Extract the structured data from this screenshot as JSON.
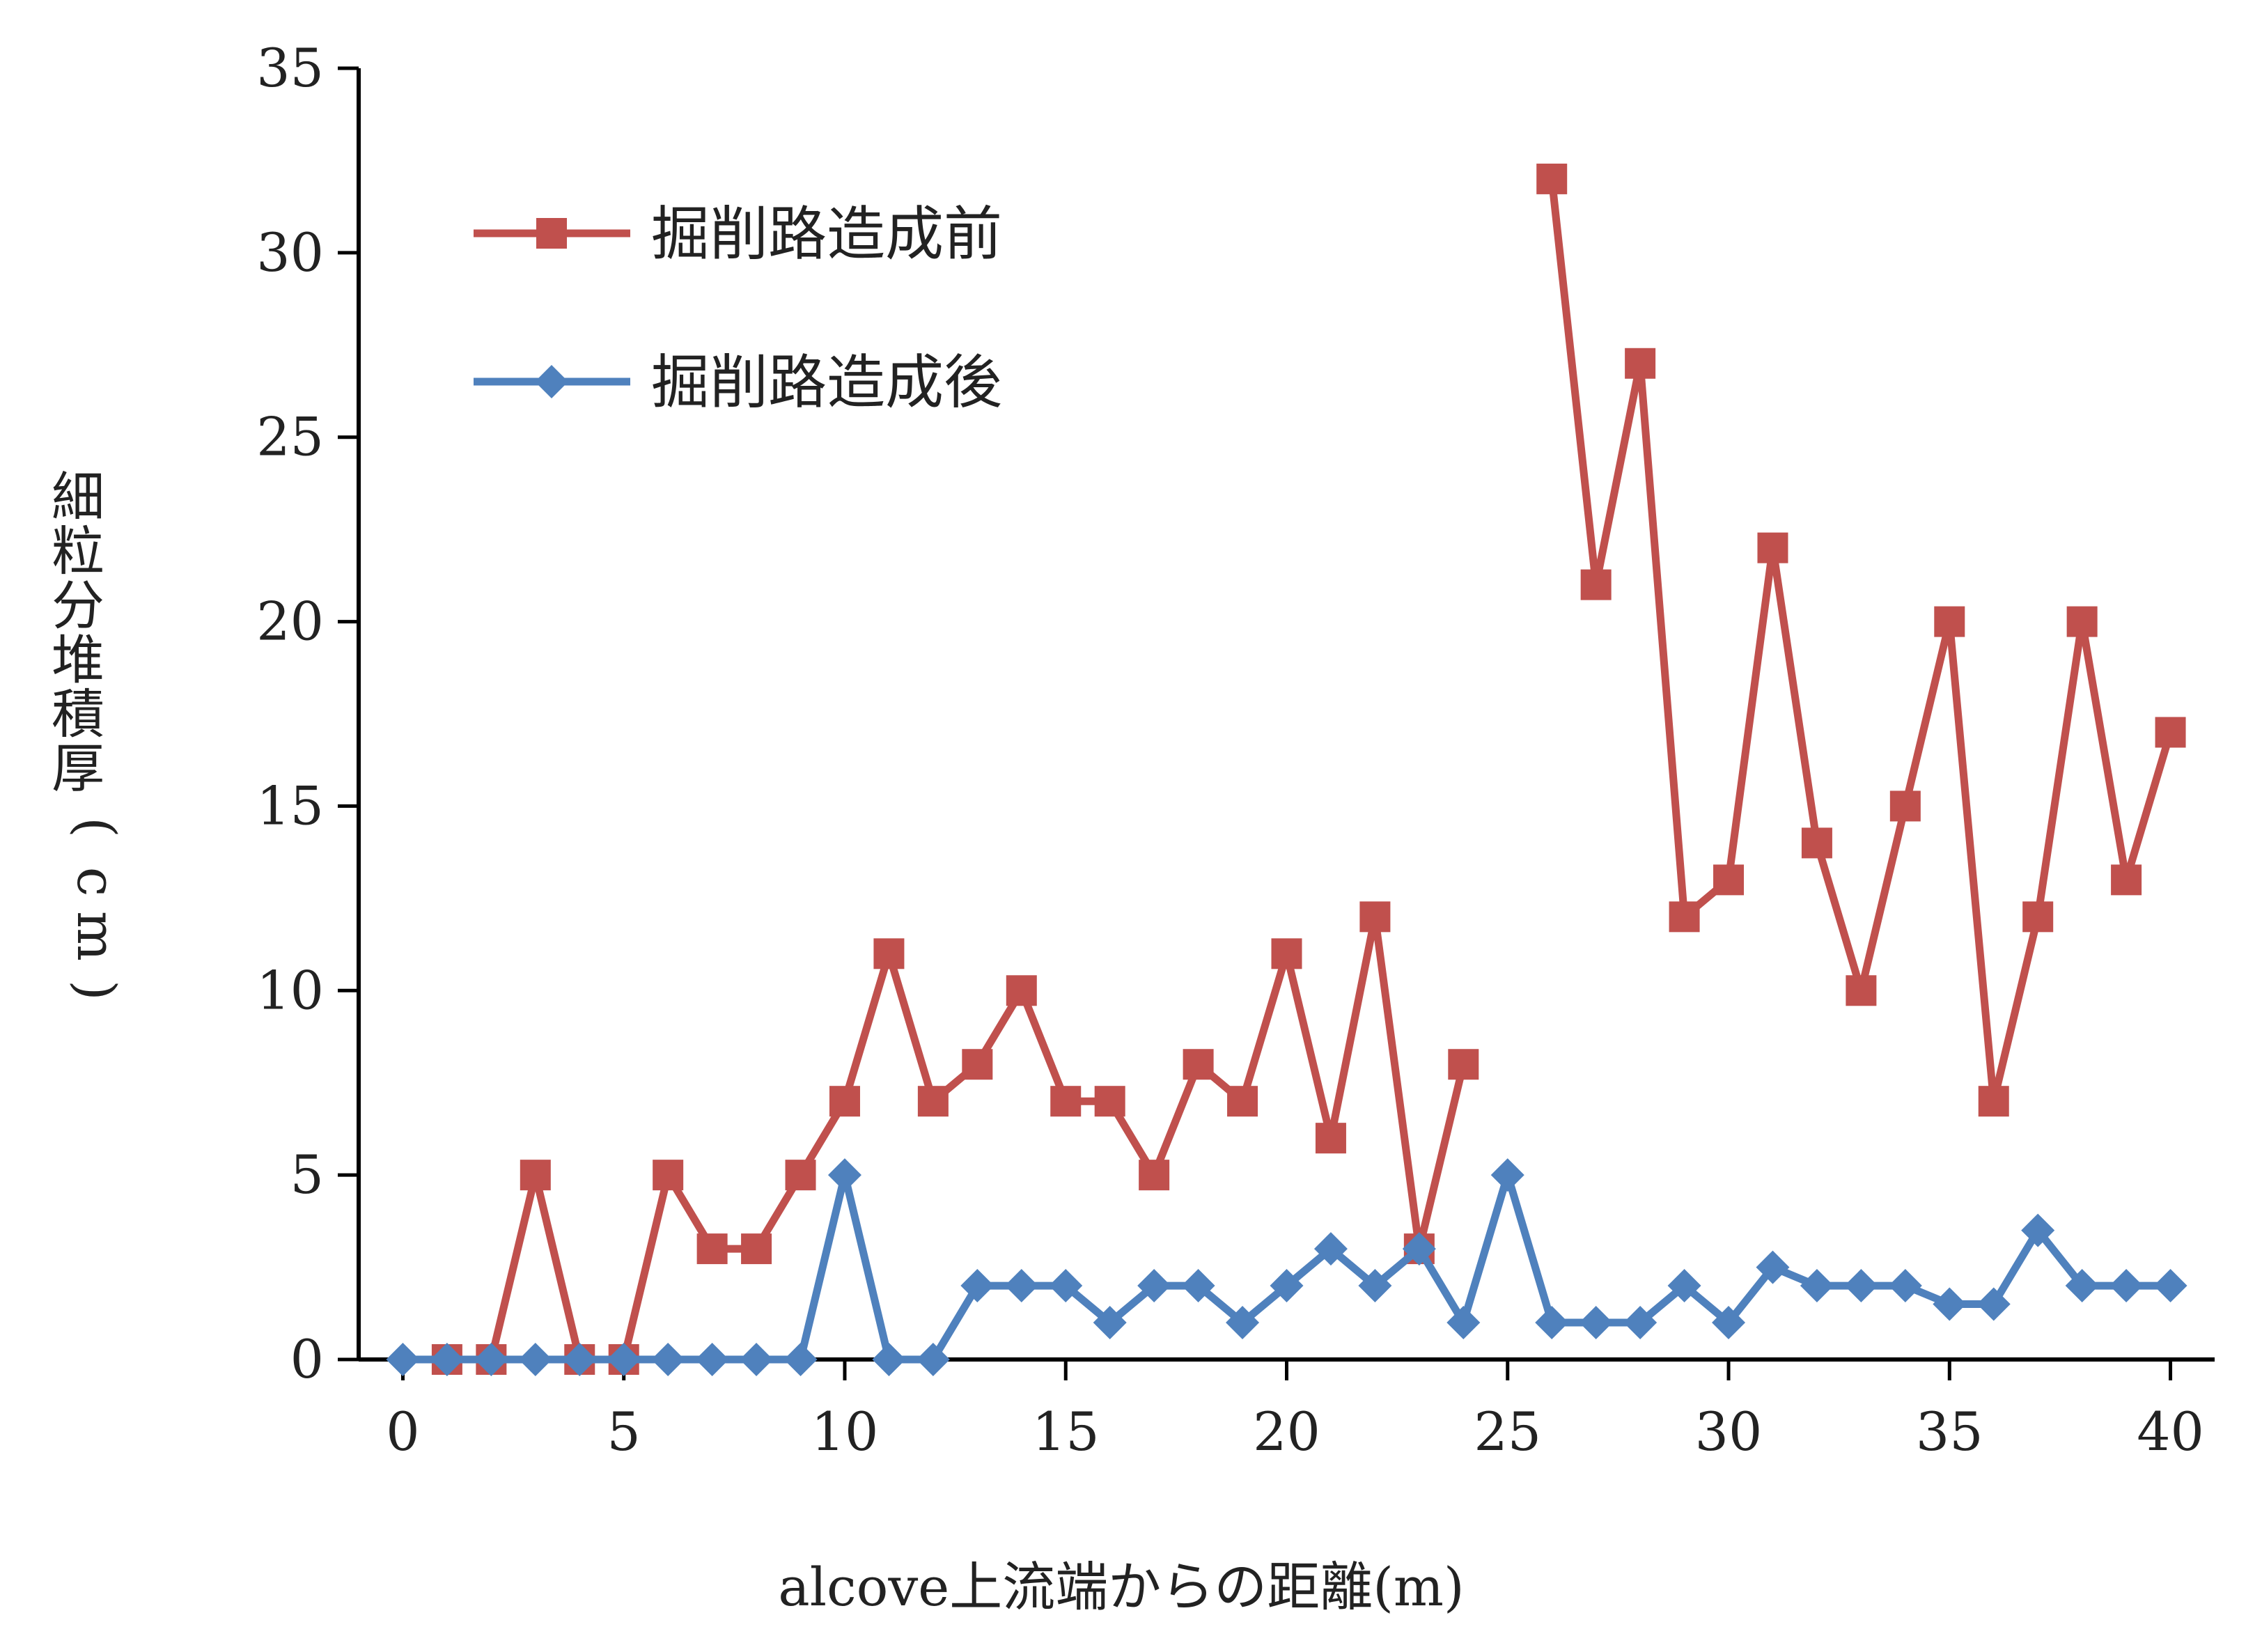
{
  "chart_data": {
    "type": "line",
    "title": "",
    "xlabel": "alcove上流端からの距離(m)",
    "ylabel": "細粒分堆積厚(cm)",
    "xlim": [
      -1,
      41
    ],
    "ylim": [
      0,
      35
    ],
    "x_ticks": [
      "0",
      "5",
      "10",
      "15",
      "20",
      "25",
      "30",
      "35",
      "40"
    ],
    "y_ticks": [
      "0",
      "5",
      "10",
      "15",
      "20",
      "25",
      "30",
      "35"
    ],
    "grid": false,
    "legend_position": "top-left",
    "series": [
      {
        "name": "掘削路造成前",
        "color": "#c0504d",
        "marker": "square",
        "x": [
          1,
          2,
          3,
          4,
          5,
          6,
          7,
          8,
          9,
          10,
          11,
          12,
          13,
          14,
          15,
          16,
          17,
          18,
          19,
          20,
          21,
          22,
          23,
          24,
          null,
          26,
          27,
          28,
          29,
          30,
          31,
          32,
          33,
          34,
          35,
          36,
          37,
          38,
          39,
          40
        ],
        "values": [
          0,
          0,
          5,
          0,
          0,
          5,
          3,
          3,
          5,
          7,
          11,
          7,
          8,
          10,
          7,
          7,
          5,
          8,
          7,
          11,
          6,
          12,
          3,
          8,
          null,
          32,
          21,
          27,
          12,
          13,
          22,
          14,
          10,
          15,
          20,
          7,
          12,
          20,
          13,
          17
        ]
      },
      {
        "name": "掘削路造成後",
        "color": "#4f81bd",
        "marker": "diamond",
        "x": [
          0,
          1,
          2,
          3,
          4,
          5,
          6,
          7,
          8,
          9,
          10,
          11,
          12,
          13,
          14,
          15,
          16,
          17,
          18,
          19,
          20,
          21,
          22,
          23,
          24,
          25,
          26,
          27,
          28,
          29,
          30,
          31,
          32,
          33,
          34,
          35,
          36,
          37,
          38,
          39,
          40
        ],
        "values": [
          0,
          0,
          0,
          0,
          0,
          0,
          0,
          0,
          0,
          0,
          5,
          0,
          0,
          2,
          2,
          2,
          1,
          2,
          2,
          1,
          2,
          3,
          2,
          3,
          1,
          5,
          1,
          1,
          1,
          2,
          1,
          2.5,
          2,
          2,
          2,
          1.5,
          1.5,
          3.5,
          2,
          2,
          2
        ]
      }
    ]
  }
}
